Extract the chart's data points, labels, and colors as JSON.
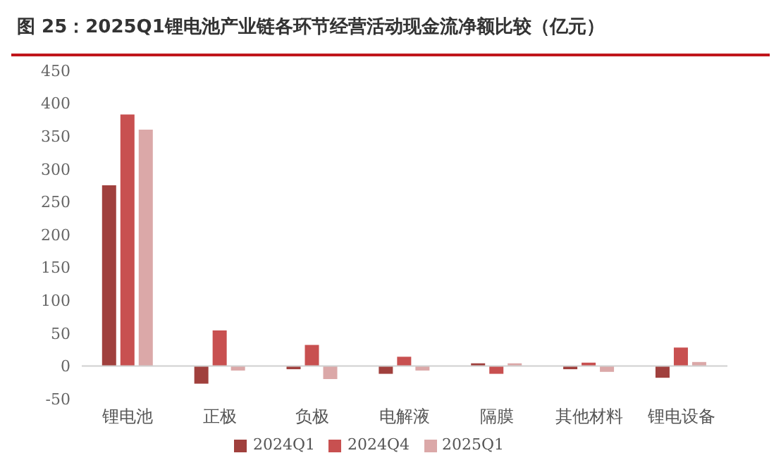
{
  "chart_data": {
    "type": "bar",
    "title": "图 25：2025Q1锂电池产业链各环节经营活动现金流净额比较（亿元）",
    "categories": [
      "锂电池",
      "正极",
      "负极",
      "电解液",
      "隔膜",
      "其他材料",
      "锂电设备"
    ],
    "series": [
      {
        "name": "2024Q1",
        "color": "#a0403d",
        "values": [
          275,
          -27,
          -5,
          -12,
          4,
          -5,
          -18
        ]
      },
      {
        "name": "2024Q4",
        "color": "#c85050",
        "values": [
          383,
          54,
          32,
          14,
          -12,
          5,
          28
        ]
      },
      {
        "name": "2025Q1",
        "color": "#dba8a8",
        "values": [
          360,
          -7,
          -20,
          -7,
          4,
          -9,
          6
        ]
      }
    ],
    "ylim": [
      -50,
      450
    ],
    "yticks": [
      -50,
      0,
      50,
      100,
      150,
      200,
      250,
      300,
      350,
      400,
      450
    ],
    "legend": "bottom"
  }
}
